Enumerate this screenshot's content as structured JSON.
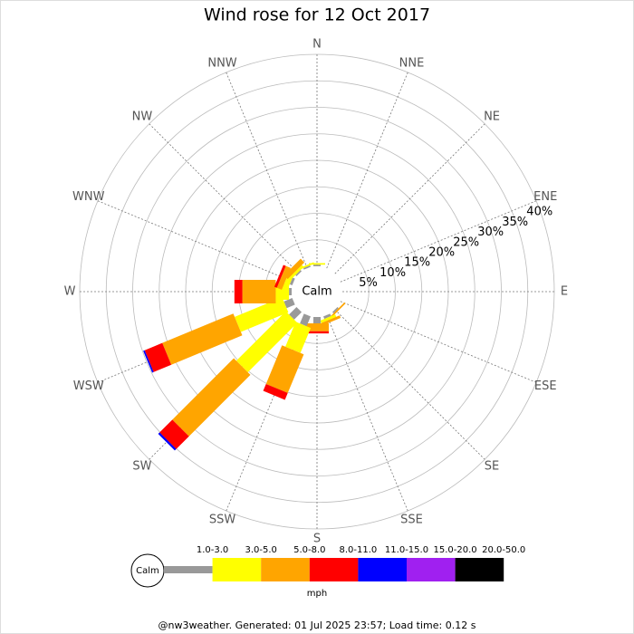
{
  "chart_data": {
    "type": "windrose",
    "title": "Wind rose for 12 Oct 2017",
    "calm_label": "Calm",
    "directions": [
      "N",
      "NNE",
      "NE",
      "ENE",
      "E",
      "ESE",
      "SE",
      "SSE",
      "S",
      "SSW",
      "SW",
      "WSW",
      "W",
      "WNW",
      "NW",
      "NNW"
    ],
    "ylim": [
      0,
      40
    ],
    "yticks": [
      {
        "value": 5,
        "label": "5%"
      },
      {
        "value": 10,
        "label": "10%"
      },
      {
        "value": 15,
        "label": "15%"
      },
      {
        "value": 20,
        "label": "20%"
      },
      {
        "value": 25,
        "label": "25%"
      },
      {
        "value": 30,
        "label": "30%"
      },
      {
        "value": 35,
        "label": "35%"
      },
      {
        "value": 40,
        "label": "40%"
      }
    ],
    "unit": "mph",
    "series": [
      {
        "name": "1.0-3.0",
        "color": "#999999",
        "values": [
          0.3,
          0,
          0,
          0,
          0,
          0,
          0.3,
          0.5,
          1.2,
          2,
          2,
          1.7,
          0.5,
          0.5,
          0.3,
          0.3
        ]
      },
      {
        "name": "3.0-5.0",
        "color": "#ffff00",
        "values": [
          0.3,
          0,
          0,
          0,
          0,
          0,
          0,
          0.5,
          0,
          5.1,
          13.2,
          9.7,
          2.5,
          1,
          0.5,
          0.3
        ]
      },
      {
        "name": "5.0-8.0",
        "color": "#ffa500",
        "values": [
          0,
          0,
          0,
          0,
          0,
          0,
          0.3,
          0.5,
          1.5,
          7.9,
          16.4,
          14.5,
          6.3,
          1,
          1,
          0
        ]
      },
      {
        "name": "8.0-11.0",
        "color": "#ff0000",
        "values": [
          0,
          0,
          0,
          0,
          0,
          0,
          0,
          0,
          0.4,
          1.4,
          3.4,
          3.6,
          1.5,
          0.5,
          0,
          0
        ]
      },
      {
        "name": "11.0-15.0",
        "color": "#0000ff",
        "values": [
          0,
          0,
          0,
          0,
          0,
          0,
          0,
          0,
          0,
          0,
          0.4,
          0.3,
          0,
          0,
          0,
          0
        ]
      },
      {
        "name": "15.0-20.0",
        "color": "#a020f0",
        "values": [
          0,
          0,
          0,
          0,
          0,
          0,
          0,
          0,
          0,
          0,
          0,
          0,
          0,
          0,
          0,
          0
        ]
      },
      {
        "name": "20.0-50.0",
        "color": "#000000",
        "values": [
          0,
          0,
          0,
          0,
          0,
          0,
          0,
          0,
          0,
          0,
          0,
          0,
          0,
          0,
          0,
          0
        ]
      }
    ],
    "footer": "@nw3weather. Generated: 01 Jul 2025 23:57; Load time: 0.12 s"
  }
}
